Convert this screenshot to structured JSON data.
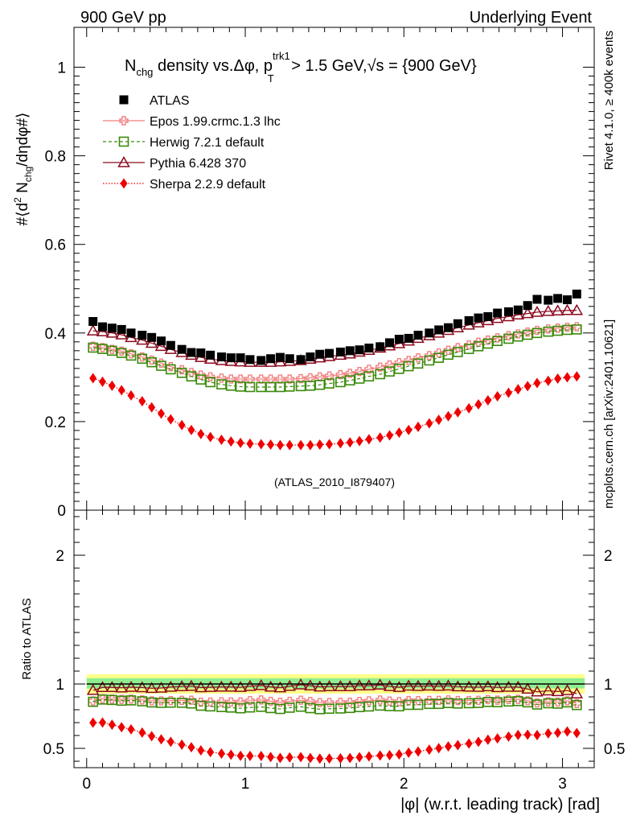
{
  "header": {
    "left": "900 GeV pp",
    "right": "Underlying Event"
  },
  "side_labels": {
    "rivet": "Rivet 4.1.0, ≥ 400k events",
    "mcplots": "mcplots.cern.ch [arXiv:2401.10621]"
  },
  "chart_data": {
    "type": "scatter",
    "title": "N_chg density vs.Δφ, p_T^trk1 > 1.5 GeV,√s = {900 GeV}",
    "title_parts": {
      "n": "N",
      "n_sub": "chg",
      "mid": " density vs.Δφ, p",
      "p_sup": "trk1",
      "p_sub": "T",
      "cut": " > 1.5 GeV,",
      "sqrt": "√s",
      "energy": " = {900 GeV}"
    },
    "ylabel": "#⟨d² N_chg/dηdφ#⟩",
    "ylabel_parts": {
      "a": "#⟨d",
      "sup": "2",
      "b": " N",
      "sub": "chg",
      "c": "/dηdφ#⟩"
    },
    "ratio_ylabel": "Ratio to ATLAS",
    "xlabel": "|φ| (w.r.t. leading track) [rad]",
    "xlim": [
      -0.08,
      3.2
    ],
    "ylim": [
      0,
      1.09
    ],
    "ratio_ylim": [
      0.35,
      2.35
    ],
    "xticks": [
      "0",
      "1",
      "2",
      "3"
    ],
    "xtick_values": [
      0,
      1,
      2,
      3
    ],
    "yticks": [
      "0",
      "0.2",
      "0.4",
      "0.6",
      "0.8",
      "1"
    ],
    "ytick_values": [
      0,
      0.2,
      0.4,
      0.6,
      0.8,
      1
    ],
    "ratio_yticks": [
      "0.5",
      "1",
      "2"
    ],
    "ratio_ytick_values": [
      0.5,
      1,
      2
    ],
    "watermark": "(ATLAS_2010_I879407)",
    "legend_position": "top-left",
    "x": [
      0.04,
      0.1,
      0.16,
      0.22,
      0.28,
      0.35,
      0.41,
      0.47,
      0.53,
      0.6,
      0.66,
      0.72,
      0.78,
      0.85,
      0.91,
      0.97,
      1.03,
      1.1,
      1.16,
      1.22,
      1.28,
      1.35,
      1.41,
      1.47,
      1.53,
      1.6,
      1.66,
      1.72,
      1.78,
      1.85,
      1.91,
      1.97,
      2.03,
      2.09,
      2.16,
      2.22,
      2.28,
      2.34,
      2.41,
      2.47,
      2.53,
      2.59,
      2.66,
      2.72,
      2.78,
      2.84,
      2.91,
      2.97,
      3.03,
      3.09
    ],
    "series": [
      {
        "name": "ATLAS",
        "color": "#000000",
        "marker": "square-filled",
        "values": [
          0.426,
          0.414,
          0.411,
          0.408,
          0.4,
          0.395,
          0.39,
          0.382,
          0.372,
          0.363,
          0.356,
          0.355,
          0.35,
          0.346,
          0.344,
          0.344,
          0.34,
          0.338,
          0.342,
          0.345,
          0.342,
          0.34,
          0.346,
          0.352,
          0.354,
          0.357,
          0.36,
          0.362,
          0.366,
          0.369,
          0.378,
          0.386,
          0.388,
          0.395,
          0.4,
          0.407,
          0.412,
          0.421,
          0.428,
          0.434,
          0.437,
          0.445,
          0.448,
          0.452,
          0.462,
          0.476,
          0.474,
          0.478,
          0.475,
          0.488
        ]
      },
      {
        "name": "Epos 1.99.crmc.1.3 lhc",
        "color": "#f08080",
        "marker": "plus-square",
        "values": [
          0.37,
          0.367,
          0.363,
          0.359,
          0.353,
          0.346,
          0.339,
          0.332,
          0.324,
          0.317,
          0.311,
          0.305,
          0.301,
          0.298,
          0.296,
          0.296,
          0.296,
          0.296,
          0.296,
          0.296,
          0.296,
          0.297,
          0.299,
          0.301,
          0.303,
          0.306,
          0.309,
          0.313,
          0.318,
          0.323,
          0.328,
          0.333,
          0.338,
          0.344,
          0.349,
          0.355,
          0.361,
          0.367,
          0.373,
          0.379,
          0.384,
          0.389,
          0.394,
          0.398,
          0.402,
          0.406,
          0.409,
          0.411,
          0.413,
          0.414
        ]
      },
      {
        "name": "Herwig 7.2.1 default",
        "color": "#3a8a0a",
        "marker": "square-open",
        "values": [
          0.367,
          0.364,
          0.36,
          0.355,
          0.349,
          0.342,
          0.334,
          0.326,
          0.318,
          0.31,
          0.302,
          0.295,
          0.289,
          0.284,
          0.281,
          0.279,
          0.278,
          0.278,
          0.278,
          0.278,
          0.279,
          0.28,
          0.281,
          0.283,
          0.286,
          0.289,
          0.293,
          0.297,
          0.302,
          0.307,
          0.313,
          0.319,
          0.325,
          0.331,
          0.338,
          0.344,
          0.351,
          0.357,
          0.364,
          0.37,
          0.376,
          0.382,
          0.387,
          0.392,
          0.396,
          0.4,
          0.403,
          0.405,
          0.407,
          0.408
        ]
      },
      {
        "name": "Pythia 6.428 370",
        "color": "#8b0a1e",
        "marker": "triangle-open",
        "values": [
          0.405,
          0.403,
          0.4,
          0.396,
          0.39,
          0.384,
          0.377,
          0.37,
          0.363,
          0.356,
          0.35,
          0.345,
          0.341,
          0.338,
          0.336,
          0.335,
          0.334,
          0.334,
          0.334,
          0.335,
          0.336,
          0.338,
          0.341,
          0.344,
          0.347,
          0.35,
          0.353,
          0.357,
          0.361,
          0.366,
          0.371,
          0.376,
          0.382,
          0.388,
          0.394,
          0.4,
          0.406,
          0.412,
          0.418,
          0.423,
          0.428,
          0.433,
          0.437,
          0.441,
          0.444,
          0.447,
          0.449,
          0.45,
          0.451,
          0.451
        ]
      },
      {
        "name": "Sherpa 2.2.9 default",
        "color": "#ee0000",
        "marker": "diamond-filled",
        "values": [
          0.298,
          0.29,
          0.281,
          0.271,
          0.259,
          0.246,
          0.232,
          0.218,
          0.205,
          0.192,
          0.181,
          0.172,
          0.165,
          0.159,
          0.155,
          0.152,
          0.15,
          0.149,
          0.148,
          0.147,
          0.147,
          0.147,
          0.147,
          0.148,
          0.149,
          0.151,
          0.153,
          0.156,
          0.16,
          0.164,
          0.169,
          0.175,
          0.181,
          0.188,
          0.196,
          0.204,
          0.212,
          0.221,
          0.23,
          0.239,
          0.248,
          0.257,
          0.265,
          0.273,
          0.28,
          0.287,
          0.292,
          0.297,
          0.3,
          0.302
        ]
      }
    ]
  }
}
